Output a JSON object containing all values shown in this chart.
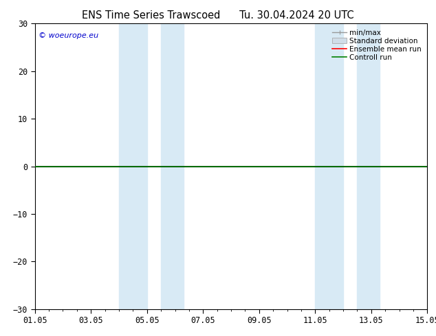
{
  "title_left": "ENS Time Series Trawscoed",
  "title_right": "Tu. 30.04.2024 20 UTC",
  "ylim": [
    -30,
    30
  ],
  "yticks": [
    -30,
    -20,
    -10,
    0,
    10,
    20,
    30
  ],
  "xtick_labels": [
    "01.05",
    "03.05",
    "05.05",
    "07.05",
    "09.05",
    "11.05",
    "13.05",
    "15.05"
  ],
  "xtick_positions": [
    0,
    2,
    4,
    6,
    8,
    10,
    12,
    14
  ],
  "xlim": [
    0,
    14
  ],
  "shade_bands": [
    {
      "x_start": 3.0,
      "x_end": 4.0,
      "color": "#ddeeff"
    },
    {
      "x_start": 4.0,
      "x_end": 5.2,
      "color": "#ddeeff"
    },
    {
      "x_start": 10.0,
      "x_end": 11.2,
      "color": "#ddeeff"
    },
    {
      "x_start": 11.2,
      "x_end": 12.2,
      "color": "#ddeeff"
    }
  ],
  "hline_y": 0,
  "hline_color": "#000000",
  "green_line_y": 0,
  "green_line_color": "#008000",
  "legend_labels": [
    "min/max",
    "Standard deviation",
    "Ensemble mean run",
    "Controll run"
  ],
  "legend_colors": [
    "#999999",
    "#cccccc",
    "#ff0000",
    "#008000"
  ],
  "watermark": "© woeurope.eu",
  "watermark_color": "#0000cc",
  "background_color": "#ffffff",
  "title_fontsize": 10.5,
  "tick_fontsize": 8.5,
  "legend_fontsize": 7.5
}
